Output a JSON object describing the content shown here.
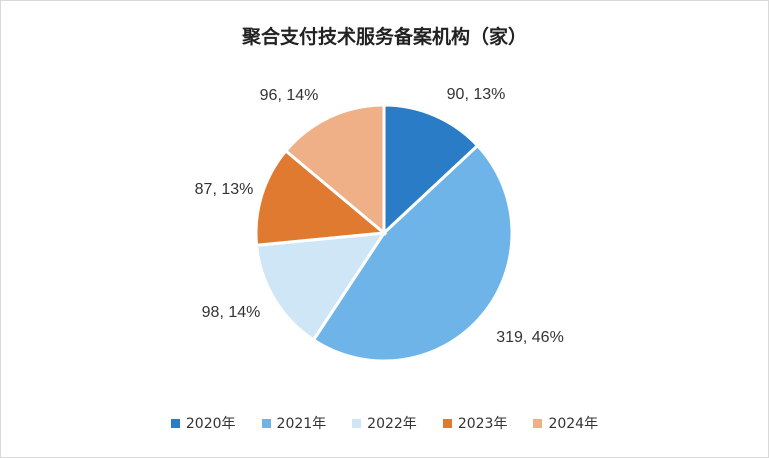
{
  "chart_data": {
    "type": "pie",
    "title": "聚合支付技术服务备案机构（家）",
    "categories": [
      "2020年",
      "2021年",
      "2022年",
      "2023年",
      "2024年"
    ],
    "values": [
      90,
      319,
      98,
      87,
      96
    ],
    "percent_labels": [
      "13%",
      "46%",
      "14%",
      "13%",
      "14%"
    ],
    "data_labels": [
      "90, 13%",
      "319, 46%",
      "98, 14%",
      "87, 13%",
      "96, 14%"
    ],
    "colors": [
      "#2a7cc7",
      "#6fb4e8",
      "#cfe6f6",
      "#e07a30",
      "#efb088"
    ],
    "legend_position": "bottom"
  }
}
